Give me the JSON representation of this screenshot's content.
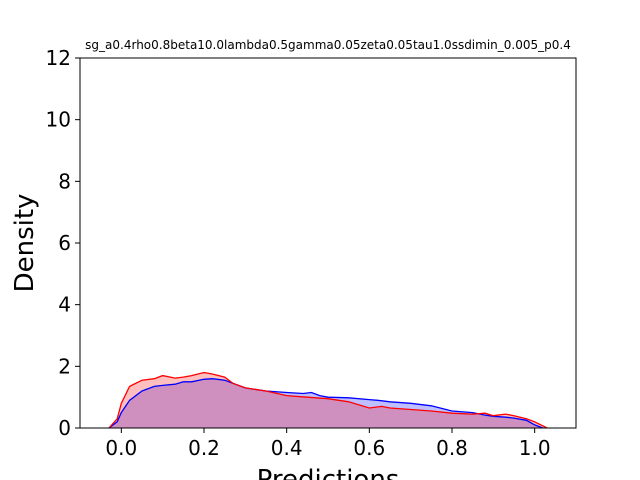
{
  "chart_data": {
    "type": "area",
    "title": "sg_a0.4rho0.8beta10.0lambda0.5gamma0.05zeta0.05tau1.0ssdimin_0.005_p0.4",
    "xlabel": "Predictions",
    "ylabel": "Density",
    "xlim": [
      -0.1,
      1.1
    ],
    "ylim": [
      0,
      12
    ],
    "xticks": [
      "0.0",
      "0.2",
      "0.4",
      "0.6",
      "0.8",
      "1.0"
    ],
    "xtick_values": [
      0.0,
      0.2,
      0.4,
      0.6,
      0.8,
      1.0
    ],
    "yticks": [
      "0",
      "2",
      "4",
      "6",
      "8",
      "10",
      "12"
    ],
    "ytick_values": [
      0,
      2,
      4,
      6,
      8,
      10,
      12
    ],
    "grid": false,
    "legend": "none",
    "series": [
      {
        "color": "#0000ff",
        "fill": "#0000ff",
        "x": [
          -0.03,
          -0.01,
          0.0,
          0.02,
          0.05,
          0.08,
          0.1,
          0.13,
          0.15,
          0.17,
          0.2,
          0.22,
          0.25,
          0.27,
          0.3,
          0.35,
          0.4,
          0.44,
          0.46,
          0.48,
          0.5,
          0.55,
          0.6,
          0.62,
          0.65,
          0.7,
          0.75,
          0.8,
          0.85,
          0.88,
          0.9,
          0.93,
          0.95,
          0.98,
          1.0,
          1.02
        ],
        "y": [
          0.0,
          0.2,
          0.5,
          0.9,
          1.2,
          1.35,
          1.38,
          1.42,
          1.5,
          1.5,
          1.58,
          1.6,
          1.55,
          1.45,
          1.3,
          1.2,
          1.15,
          1.12,
          1.15,
          1.05,
          1.0,
          0.98,
          0.92,
          0.9,
          0.85,
          0.8,
          0.72,
          0.55,
          0.5,
          0.42,
          0.38,
          0.35,
          0.32,
          0.25,
          0.1,
          0.0
        ]
      },
      {
        "color": "#ff0000",
        "fill": "#ff0000",
        "x": [
          -0.03,
          -0.01,
          0.0,
          0.02,
          0.05,
          0.08,
          0.1,
          0.13,
          0.15,
          0.17,
          0.2,
          0.22,
          0.25,
          0.27,
          0.3,
          0.35,
          0.4,
          0.45,
          0.5,
          0.55,
          0.6,
          0.63,
          0.65,
          0.7,
          0.75,
          0.8,
          0.85,
          0.88,
          0.9,
          0.93,
          0.95,
          0.98,
          1.0,
          1.03
        ],
        "y": [
          0.0,
          0.3,
          0.8,
          1.35,
          1.55,
          1.6,
          1.7,
          1.62,
          1.65,
          1.7,
          1.8,
          1.75,
          1.65,
          1.45,
          1.3,
          1.2,
          1.05,
          1.0,
          0.95,
          0.85,
          0.65,
          0.7,
          0.65,
          0.6,
          0.55,
          0.48,
          0.45,
          0.48,
          0.4,
          0.45,
          0.4,
          0.3,
          0.2,
          0.0
        ]
      }
    ]
  }
}
